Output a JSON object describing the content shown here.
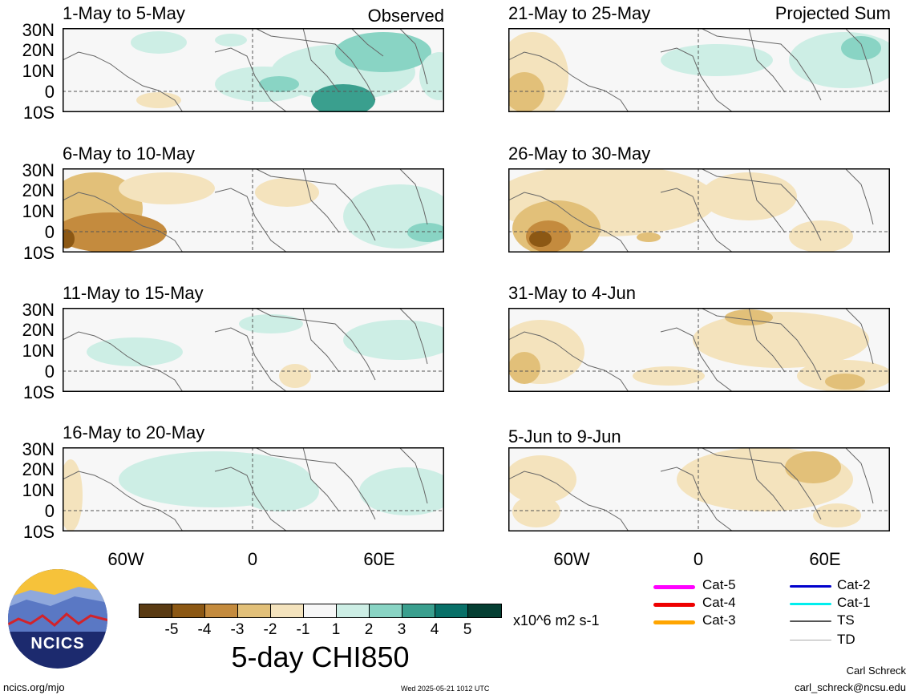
{
  "panels": [
    {
      "title": "1-May to 5-May",
      "corner": "Observed"
    },
    {
      "title": "6-May to 10-May",
      "corner": ""
    },
    {
      "title": "11-May to 15-May",
      "corner": ""
    },
    {
      "title": "16-May to 20-May",
      "corner": ""
    },
    {
      "title": "21-May to 25-May",
      "corner": "Projected Sum"
    },
    {
      "title": "26-May to 30-May",
      "corner": ""
    },
    {
      "title": "31-May to 4-Jun",
      "corner": ""
    },
    {
      "title": "5-Jun to 9-Jun",
      "corner": ""
    }
  ],
  "lat_labels": [
    "30N",
    "20N",
    "10N",
    "0",
    "10S"
  ],
  "lon_labels": [
    "60W",
    "0",
    "60E"
  ],
  "colorbar": {
    "colors": [
      "#5a3b13",
      "#8c5814",
      "#c48b3e",
      "#e2c079",
      "#f4e3bd",
      "#f7f7f7",
      "#cdeee5",
      "#89d4c4",
      "#3a9f8e",
      "#087068",
      "#053f33"
    ],
    "ticks": [
      "-5",
      "-4",
      "-3",
      "-2",
      "-1",
      "1",
      "2",
      "3",
      "4",
      "5"
    ],
    "units": "x10^6 m2 s-1",
    "title": "5-day CHI850"
  },
  "legend": [
    {
      "label": "Cat-5",
      "color": "#ff00ff"
    },
    {
      "label": "Cat-4",
      "color": "#ee0000"
    },
    {
      "label": "Cat-3",
      "color": "#ffa500"
    },
    {
      "label": "Cat-2",
      "color": "#0000cc"
    },
    {
      "label": "Cat-1",
      "color": "#00eeee"
    },
    {
      "label": "TS",
      "color": "#555555"
    },
    {
      "label": "TD",
      "color": "#aaaaaa"
    }
  ],
  "logo_text": "NCICS",
  "footer": {
    "url": "ncics.org/mjo",
    "timestamp": "Wed 2025-05-21 1012 UTC",
    "author": "Carl Schreck",
    "email": "carl_schreck@ncsu.edu"
  }
}
